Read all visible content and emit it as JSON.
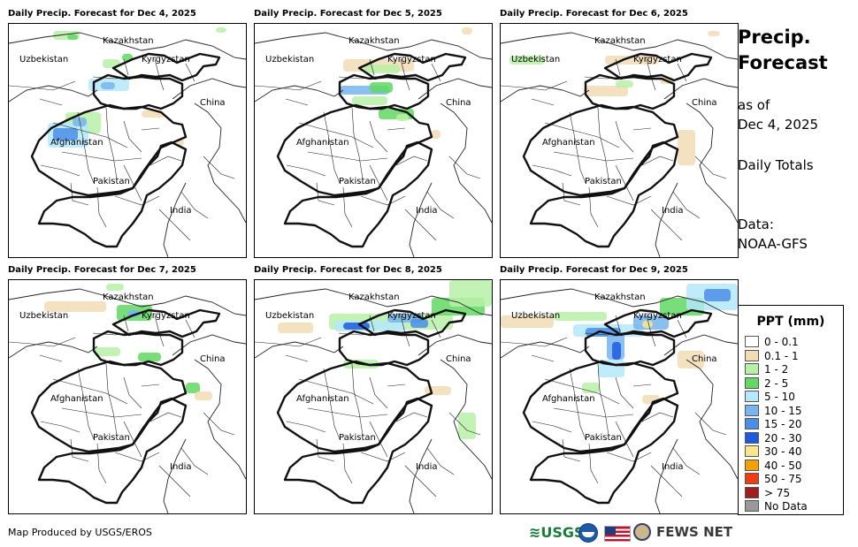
{
  "panels": [
    {
      "title": "Daily Precip. Forecast for Dec 4, 2025"
    },
    {
      "title": "Daily Precip. Forecast for Dec 5, 2025"
    },
    {
      "title": "Daily Precip. Forecast for Dec 6, 2025"
    },
    {
      "title": "Daily Precip. Forecast for Dec 7, 2025"
    },
    {
      "title": "Daily Precip. Forecast for Dec 8, 2025"
    },
    {
      "title": "Daily Precip. Forecast for Dec 9, 2025"
    }
  ],
  "map_labels": {
    "kazakhstan": "Kazakhstan",
    "uzbekistan": "Uzbekistan",
    "kyrgyzstan": "Kyrgyzstan",
    "china": "China",
    "afghanistan": "Afghanistan",
    "pakistan": "Pakistan",
    "india": "India"
  },
  "sidebar": {
    "title_line1": "Precip.",
    "title_line2": "Forecast",
    "as_of_label": "as of",
    "as_of_date": "Dec 4, 2025",
    "totals": "Daily Totals",
    "data_label": "Data:",
    "data_source": "NOAA-GFS"
  },
  "legend": {
    "title": "PPT (mm)",
    "items": [
      {
        "label": "0 - 0.1",
        "color": "#ffffff"
      },
      {
        "label": "0.1 - 1",
        "color": "#f2dcb4"
      },
      {
        "label": "1 - 2",
        "color": "#b8f0a8"
      },
      {
        "label": "2 - 5",
        "color": "#62d862"
      },
      {
        "label": "5 - 10",
        "color": "#b4e8fa"
      },
      {
        "label": "10 - 15",
        "color": "#78b4ee"
      },
      {
        "label": "15 - 20",
        "color": "#4a8ee6"
      },
      {
        "label": "20 - 30",
        "color": "#1e5ae0"
      },
      {
        "label": "30 - 40",
        "color": "#fae68c"
      },
      {
        "label": "40 - 50",
        "color": "#f5a000"
      },
      {
        "label": "50 - 75",
        "color": "#f03c14"
      },
      {
        "label": "> 75",
        "color": "#a01e1e"
      },
      {
        "label": "No Data",
        "color": "#999999"
      }
    ]
  },
  "footer": {
    "credit": "Map Produced by USGS/EROS",
    "logo_usgs": "USGS",
    "logo_fews": "FEWS NET"
  }
}
